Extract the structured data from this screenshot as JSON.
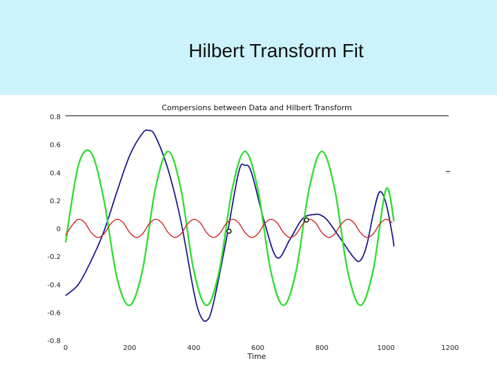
{
  "slide": {
    "title": "Hilbert Transform Fit",
    "band_color": "#ccf2fb"
  },
  "chart_data": {
    "type": "line",
    "title": "Compersions between Data and Hilbert Transform",
    "xlabel": "Time",
    "ylabel": "",
    "xlim": [
      0,
      1200
    ],
    "ylim": [
      -0.8,
      0.8
    ],
    "x_ticks": [
      "0",
      "200",
      "400",
      "600",
      "800",
      "1000",
      "1200"
    ],
    "y_ticks": [
      "-0.8",
      "-0.6",
      "-0.4",
      "-0.2",
      "0",
      "0.2",
      "0.4",
      "0.6",
      "0.8"
    ],
    "grid": false,
    "series": [
      {
        "color": "#1a1a8c",
        "x": [
          0,
          40,
          80,
          120,
          160,
          200,
          240,
          260,
          280,
          320,
          360,
          400,
          420,
          440,
          460,
          500,
          540,
          560,
          580,
          620,
          660,
          700,
          740,
          780,
          800,
          820,
          860,
          900,
          920,
          940,
          960,
          980,
          1000,
          1020,
          1025
        ],
        "y": [
          -0.48,
          -0.4,
          -0.23,
          -0.02,
          0.26,
          0.52,
          0.68,
          0.7,
          0.66,
          0.42,
          0.05,
          -0.45,
          -0.62,
          -0.66,
          -0.55,
          -0.1,
          0.4,
          0.45,
          0.4,
          0.05,
          -0.21,
          -0.08,
          0.07,
          0.1,
          0.09,
          0.05,
          -0.08,
          -0.21,
          -0.23,
          -0.12,
          0.1,
          0.26,
          0.18,
          -0.05,
          -0.13
        ]
      },
      {
        "color": "#33dd33",
        "x": [
          0,
          40,
          80,
          120,
          160,
          200,
          240,
          280,
          320,
          360,
          400,
          440,
          480,
          520,
          560,
          600,
          640,
          680,
          720,
          760,
          800,
          840,
          880,
          920,
          960,
          1000,
          1025
        ],
        "y": [
          -0.1,
          0.45,
          0.54,
          0.2,
          -0.35,
          -0.55,
          -0.3,
          0.28,
          0.55,
          0.28,
          -0.3,
          -0.55,
          -0.3,
          0.28,
          0.55,
          0.28,
          -0.3,
          -0.55,
          -0.3,
          0.28,
          0.55,
          0.28,
          -0.3,
          -0.55,
          -0.3,
          0.28,
          0.05
        ]
      },
      {
        "color": "#cc2222",
        "x": [
          0,
          20,
          40,
          60,
          80,
          100,
          120,
          140,
          160,
          180,
          200,
          220,
          240,
          260,
          280,
          300,
          320,
          340,
          360,
          380,
          400,
          420,
          440,
          460,
          480,
          500,
          520,
          540,
          560,
          580,
          600,
          620,
          640,
          660,
          680,
          700,
          720,
          740,
          760,
          780,
          800,
          820,
          840,
          860,
          880,
          900,
          920,
          940,
          960,
          980,
          1000,
          1020
        ],
        "y": [
          -0.05,
          0.02,
          0.065,
          0.04,
          -0.03,
          -0.065,
          -0.04,
          0.03,
          0.065,
          0.04,
          -0.03,
          -0.065,
          -0.04,
          0.03,
          0.065,
          0.04,
          -0.03,
          -0.065,
          -0.04,
          0.03,
          0.065,
          0.04,
          -0.03,
          -0.065,
          -0.04,
          0.03,
          0.065,
          0.04,
          -0.03,
          -0.065,
          -0.04,
          0.03,
          0.065,
          0.04,
          -0.03,
          -0.065,
          -0.04,
          0.03,
          0.065,
          0.04,
          -0.03,
          -0.065,
          -0.04,
          0.03,
          0.065,
          0.04,
          -0.03,
          -0.065,
          -0.04,
          0.03,
          0.065,
          0.04
        ]
      }
    ],
    "markers": [
      {
        "x": 510,
        "y": -0.02
      },
      {
        "x": 752,
        "y": 0.06
      }
    ]
  }
}
